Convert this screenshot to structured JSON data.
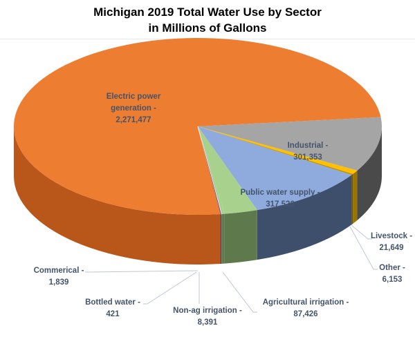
{
  "chart_data": {
    "type": "pie",
    "style": "3d",
    "title": [
      "Michigan 2019 Total Water Use by Sector",
      "in Millions of Gallons"
    ],
    "slices": [
      {
        "name": "Electric power generation",
        "value": 2271477,
        "color": "#ed7d31",
        "label": [
          "Electric power",
          "generation -",
          "2,271,477"
        ]
      },
      {
        "name": "Industrial",
        "value": 301353,
        "color": "#a5a5a5",
        "label": [
          "Industrial -",
          "301,353"
        ]
      },
      {
        "name": "Livestock",
        "value": 21649,
        "color": "#ffc000",
        "label": [
          "Livestock -",
          "21,649"
        ]
      },
      {
        "name": "Other",
        "value": 6153,
        "color": "#c09000",
        "label": [
          "Other -",
          "6,153"
        ]
      },
      {
        "name": "Public water supply",
        "value": 317526,
        "color": "#8faadc",
        "label": [
          "Public water supply -",
          "317,526"
        ]
      },
      {
        "name": "Agricultural irrigation",
        "value": 87426,
        "color": "#a9d18e",
        "label": [
          "Agricultural irrigation -",
          "87,426"
        ]
      },
      {
        "name": "Non-ag irrigation",
        "value": 8391,
        "color": "#a9d18e",
        "label": [
          "Non-ag irrigation -",
          "8,391"
        ]
      },
      {
        "name": "Bottled water",
        "value": 421,
        "color": "#ffffff",
        "label": [
          "Bottled water -",
          "421"
        ]
      },
      {
        "name": "Commerical",
        "value": 1839,
        "color": "#7030a0",
        "label": [
          "Commerical -",
          "1,839"
        ]
      }
    ]
  }
}
